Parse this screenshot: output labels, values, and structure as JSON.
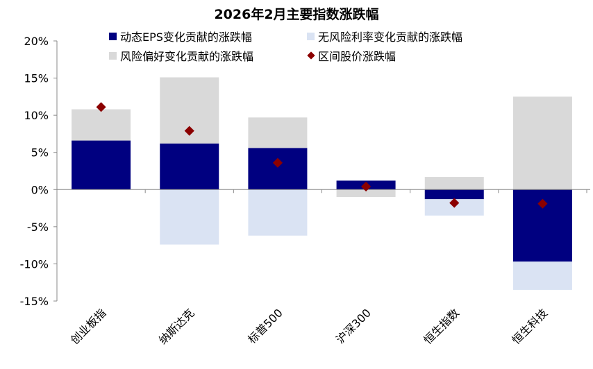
{
  "chart_data": {
    "type": "bar",
    "stacked": true,
    "title": "2026年2月主要指数涨跌幅",
    "categories": [
      "创业板指",
      "纳斯达克",
      "标普500",
      "沪深300",
      "恒生指数",
      "恒生科技"
    ],
    "series": [
      {
        "name": "动态EPS变化贡献的涨跌幅",
        "kind": "bar",
        "color": "#000080",
        "values": [
          6.6,
          6.2,
          5.6,
          1.2,
          -1.3,
          -9.7
        ]
      },
      {
        "name": "无风险利率变化贡献的涨跌幅",
        "kind": "bar",
        "color": "#dae3f3",
        "values": [
          0,
          -7.4,
          -6.2,
          0,
          -2.2,
          -3.8
        ]
      },
      {
        "name": "风险偏好变化贡献的涨跌幅",
        "kind": "bar",
        "color": "#d9d9d9",
        "values": [
          4.2,
          8.9,
          4.1,
          -1.0,
          1.7,
          12.5
        ]
      },
      {
        "name": "区间股价涨跌幅",
        "kind": "scatter",
        "marker": "diamond",
        "color": "#8b0000",
        "values": [
          11.1,
          7.9,
          3.6,
          0.4,
          -1.8,
          -1.9
        ]
      }
    ],
    "yticks": [
      "20%",
      "15%",
      "10%",
      "5%",
      "0%",
      "-5%",
      "-10%",
      "-15%"
    ],
    "ylim": [
      -15,
      20
    ],
    "yunit": "%",
    "grid": false,
    "legend": "top"
  }
}
